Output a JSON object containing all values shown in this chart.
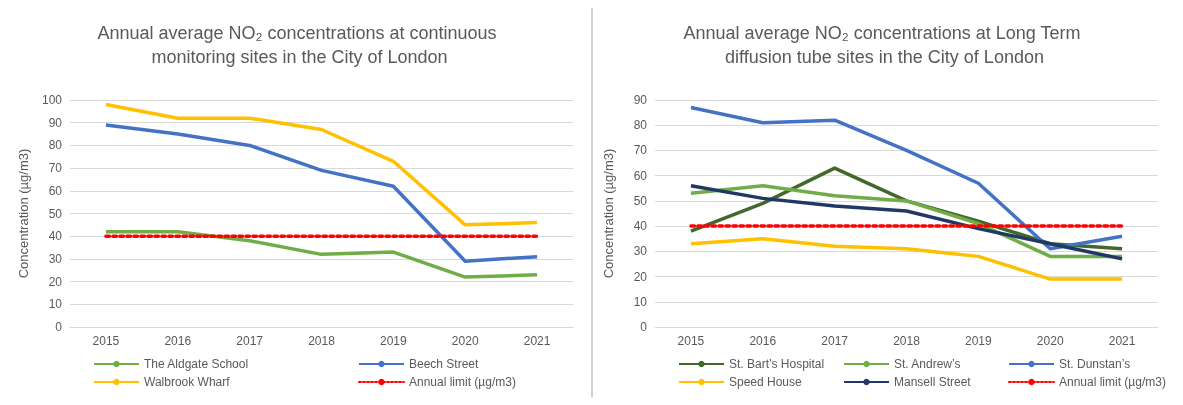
{
  "chart_data": [
    {
      "type": "line",
      "title": "Annual average NO₂ concentrations at continuous monitoring sites in the City of London",
      "ylabel": "Concentration (µg/m3)",
      "categories": [
        "2015",
        "2016",
        "2017",
        "2018",
        "2019",
        "2020",
        "2021"
      ],
      "ylim": [
        0,
        100
      ],
      "yticks": [
        0,
        10,
        20,
        30,
        40,
        50,
        60,
        70,
        80,
        90,
        100
      ],
      "grid": "y",
      "legend": "bottom",
      "marker": "none",
      "series": [
        {
          "name": "The Aldgate School",
          "color": "#70ad47",
          "values": [
            42,
            42,
            38,
            32,
            33,
            22,
            23
          ]
        },
        {
          "name": "Beech Street",
          "color": "#4472c4",
          "values": [
            89,
            85,
            80,
            69,
            62,
            29,
            31
          ]
        },
        {
          "name": "Walbrook Wharf",
          "color": "#ffc000",
          "values": [
            98,
            92,
            92,
            87,
            73,
            45,
            46
          ]
        },
        {
          "name": "Annual limit (µg/m3)",
          "color": "#ff0000",
          "line_style": "dotted",
          "values": [
            40,
            40,
            40,
            40,
            40,
            40,
            40
          ]
        }
      ]
    },
    {
      "type": "line",
      "title": "Annual average NO₂ concentrations at Long Term diffusion tube sites in the City of London",
      "ylabel": "Concentration (µg/m3)",
      "categories": [
        "2015",
        "2016",
        "2017",
        "2018",
        "2019",
        "2020",
        "2021"
      ],
      "ylim": [
        0,
        90
      ],
      "yticks": [
        0,
        10,
        20,
        30,
        40,
        50,
        60,
        70,
        80,
        90
      ],
      "grid": "y",
      "legend": "bottom",
      "marker": "none",
      "series": [
        {
          "name": "St. Bart’s Hospital",
          "color": "#43682b",
          "values": [
            38,
            49,
            63,
            50,
            42,
            33,
            31
          ]
        },
        {
          "name": "St. Andrew’s",
          "color": "#70ad47",
          "values": [
            53,
            56,
            52,
            50,
            41,
            28,
            28
          ]
        },
        {
          "name": "St. Dunstan’s",
          "color": "#4472c4",
          "values": [
            87,
            81,
            82,
            70,
            57,
            31,
            36
          ]
        },
        {
          "name": "Speed House",
          "color": "#ffc000",
          "values": [
            33,
            35,
            32,
            31,
            28,
            19,
            19
          ]
        },
        {
          "name": "Mansell Street",
          "color": "#203864",
          "values": [
            56,
            51,
            48,
            46,
            39,
            33,
            27
          ]
        },
        {
          "name": "Annual limit (µg/m3)",
          "color": "#ff0000",
          "line_style": "dotted",
          "values": [
            40,
            40,
            40,
            40,
            40,
            40,
            40
          ]
        }
      ]
    }
  ]
}
